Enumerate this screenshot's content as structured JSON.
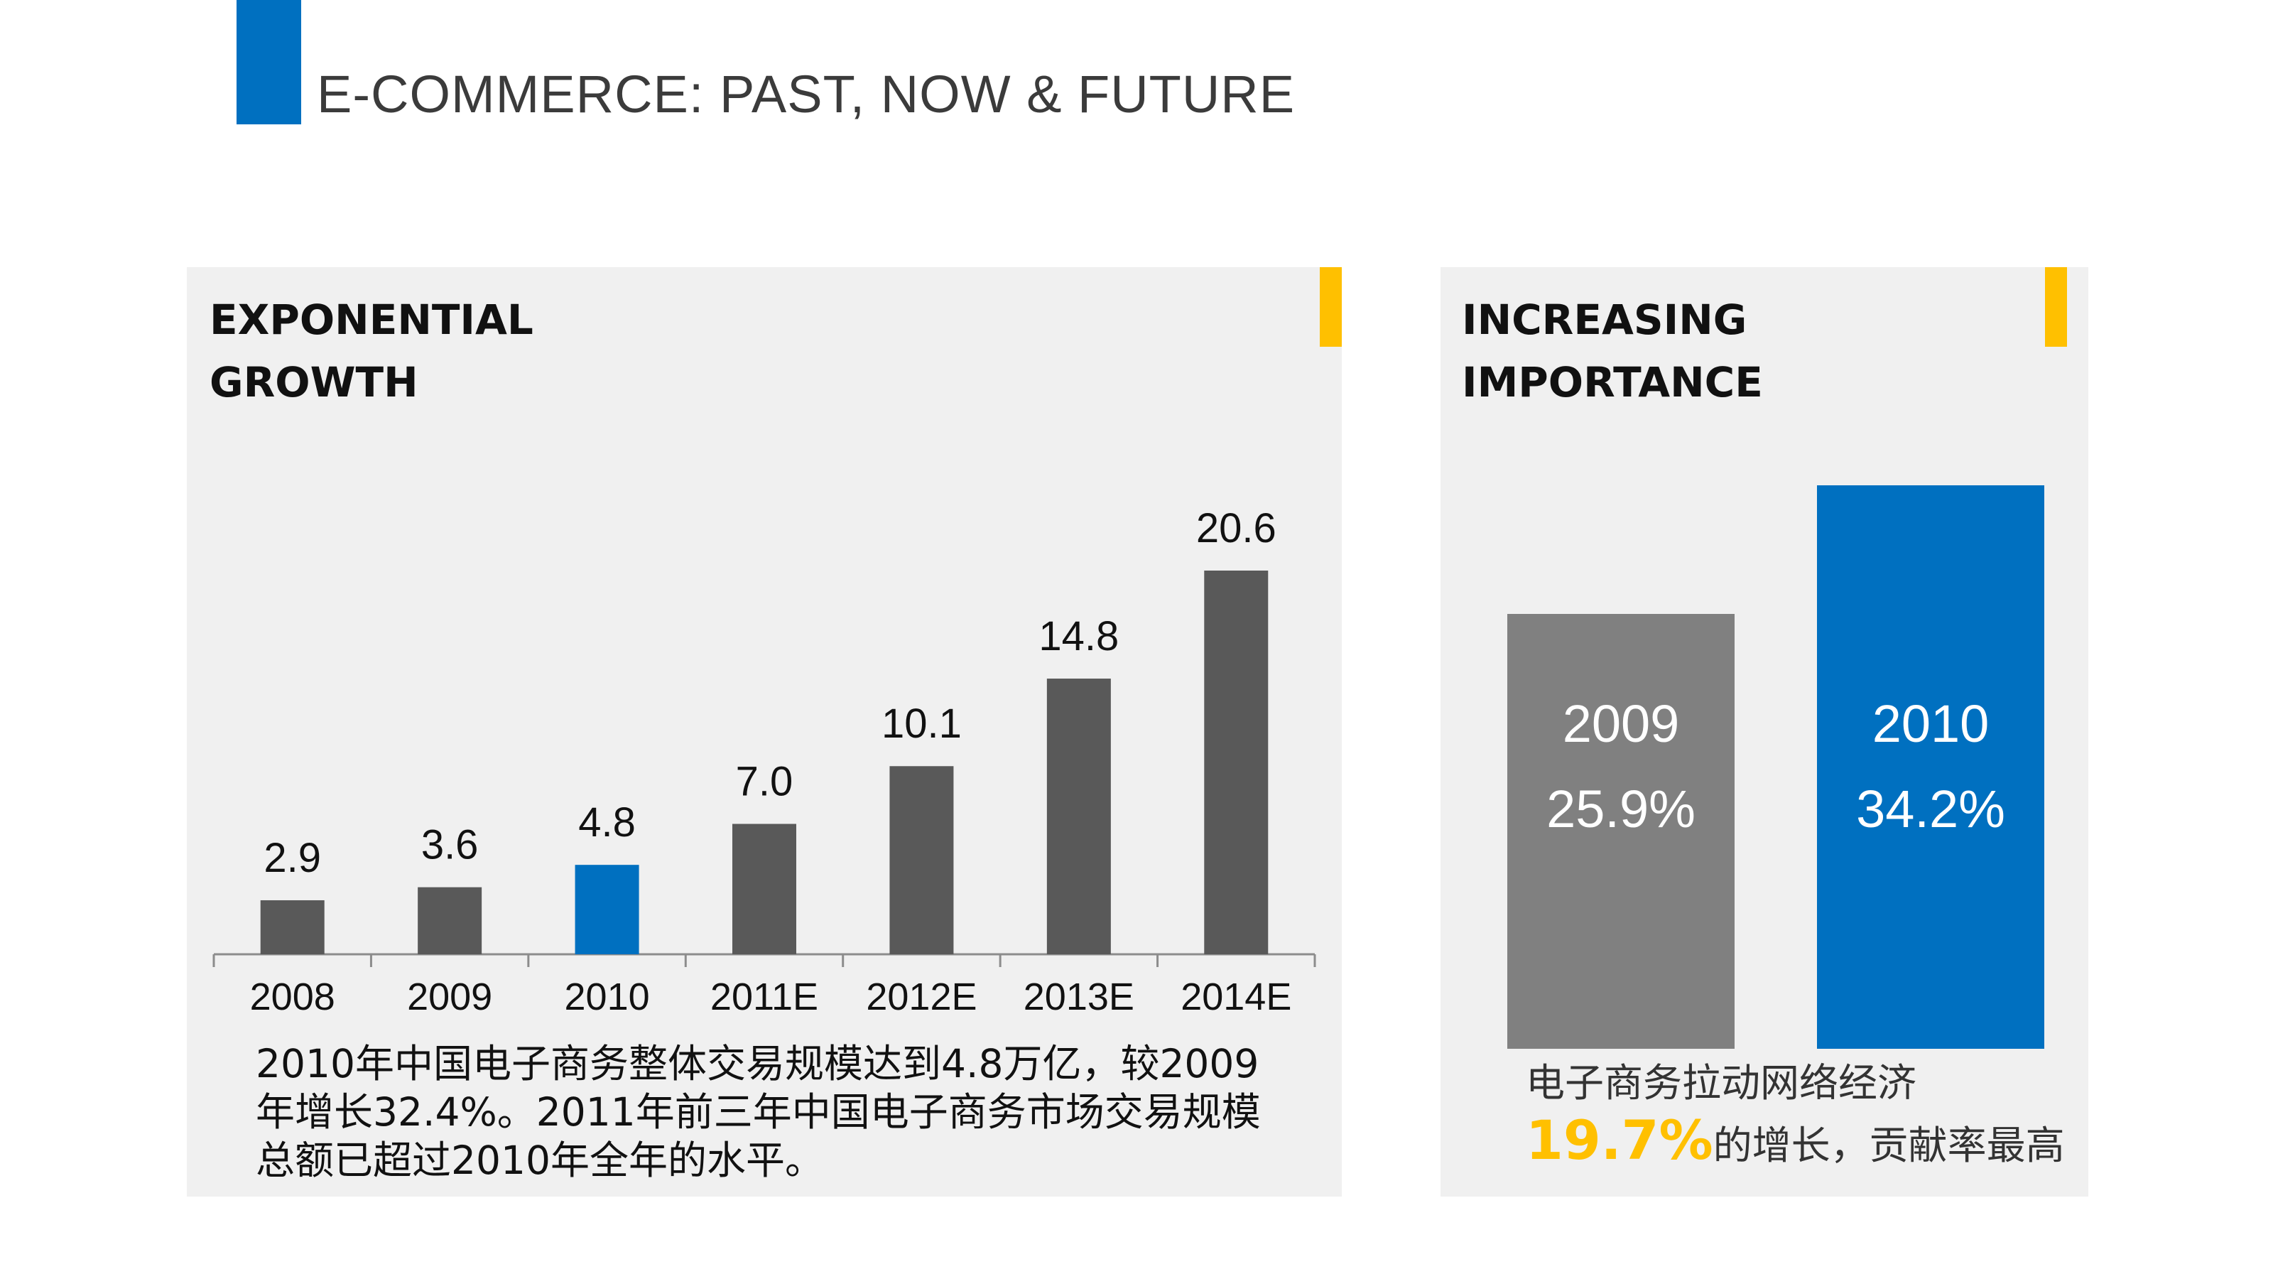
{
  "header": {
    "title": "E-COMMERCE: PAST, NOW & FUTURE"
  },
  "left_panel": {
    "heading_line1": "EXPONENTIAL",
    "heading_line2": "GROWTH",
    "note_lines": [
      "2010年中国电子商务整体交易规模达到4.8万亿，较2009",
      "年增长32.4%。2011年前三年中国电子商务市场交易规模",
      "总额已超过2010年全年的水平。"
    ]
  },
  "right_panel": {
    "heading_line1": "INCREASING",
    "heading_line2": "IMPORTANCE",
    "bars": [
      {
        "year": "2009",
        "pct": "25.9%",
        "value": 25.9,
        "color": "#808080"
      },
      {
        "year": "2010",
        "pct": "34.2%",
        "value": 34.2,
        "color": "#0070C0"
      }
    ],
    "note_line1": "电子商务拉动网络经济",
    "note_highlight": "19.7%",
    "note_rest": "的增长，贡献率最高"
  },
  "colors": {
    "accent_blue": "#0070C0",
    "accent_yellow": "#FFC000",
    "bar_gray": "#595959",
    "panel_bg": "#f0f0f0"
  },
  "chart_data": {
    "type": "bar",
    "categories": [
      "2008",
      "2009",
      "2010",
      "2011E",
      "2012E",
      "2013E",
      "2014E"
    ],
    "values": [
      2.9,
      3.6,
      4.8,
      7.0,
      10.1,
      14.8,
      20.6
    ],
    "labels": [
      "2.9",
      "3.6",
      "4.8",
      "7.0",
      "10.1",
      "14.8",
      "20.6"
    ],
    "highlight_index": 2,
    "bar_color": "#595959",
    "highlight_color": "#0070C0",
    "title": "EXPONENTIAL GROWTH",
    "xlabel": "",
    "ylabel": "",
    "ylim": [
      0,
      20.6
    ]
  }
}
